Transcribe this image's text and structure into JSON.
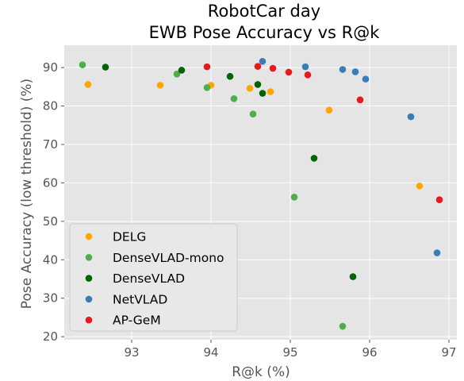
{
  "chart_data": {
    "type": "scatter",
    "title_lines": [
      "RobotCar day",
      "EWB Pose Accuracy vs R@k"
    ],
    "xlabel": "R@k (%)",
    "ylabel": "Pose Accuracy (low threshold) (%)",
    "xlim": [
      92.15,
      97.1
    ],
    "ylim": [
      19.2,
      95.8
    ],
    "xticks": [
      93,
      94,
      95,
      96,
      97
    ],
    "yticks": [
      20,
      30,
      40,
      50,
      60,
      70,
      80,
      90
    ],
    "grid": true,
    "legend_position": "lower-left",
    "series": [
      {
        "name": "DELG",
        "color": "#ffa500",
        "points": [
          [
            92.45,
            85.6
          ],
          [
            93.36,
            85.4
          ],
          [
            94.0,
            85.4
          ],
          [
            94.49,
            84.6
          ],
          [
            94.75,
            83.7
          ],
          [
            95.49,
            78.9
          ],
          [
            96.63,
            59.2
          ]
        ]
      },
      {
        "name": "DenseVLAD-mono",
        "color": "#4daf4a",
        "points": [
          [
            92.38,
            90.7
          ],
          [
            93.57,
            88.3
          ],
          [
            93.95,
            84.8
          ],
          [
            94.29,
            81.9
          ],
          [
            94.53,
            77.9
          ],
          [
            95.05,
            56.3
          ],
          [
            95.66,
            22.7
          ]
        ]
      },
      {
        "name": "DenseVLAD",
        "color": "#006400",
        "points": [
          [
            92.67,
            90.1
          ],
          [
            93.63,
            89.3
          ],
          [
            94.24,
            87.7
          ],
          [
            94.59,
            85.6
          ],
          [
            94.65,
            83.3
          ],
          [
            95.3,
            66.4
          ],
          [
            95.79,
            35.6
          ]
        ]
      },
      {
        "name": "NetVLAD",
        "color": "#377eb8",
        "points": [
          [
            94.65,
            91.6
          ],
          [
            95.19,
            90.2
          ],
          [
            95.66,
            89.5
          ],
          [
            95.82,
            88.9
          ],
          [
            95.95,
            87.0
          ],
          [
            96.52,
            77.2
          ],
          [
            96.85,
            41.8
          ]
        ]
      },
      {
        "name": "AP-GeM",
        "color": "#e41a1c",
        "points": [
          [
            93.95,
            90.2
          ],
          [
            94.59,
            90.3
          ],
          [
            94.78,
            89.8
          ],
          [
            94.98,
            88.8
          ],
          [
            95.22,
            88.1
          ],
          [
            95.88,
            81.6
          ],
          [
            96.88,
            55.6
          ]
        ]
      }
    ]
  }
}
